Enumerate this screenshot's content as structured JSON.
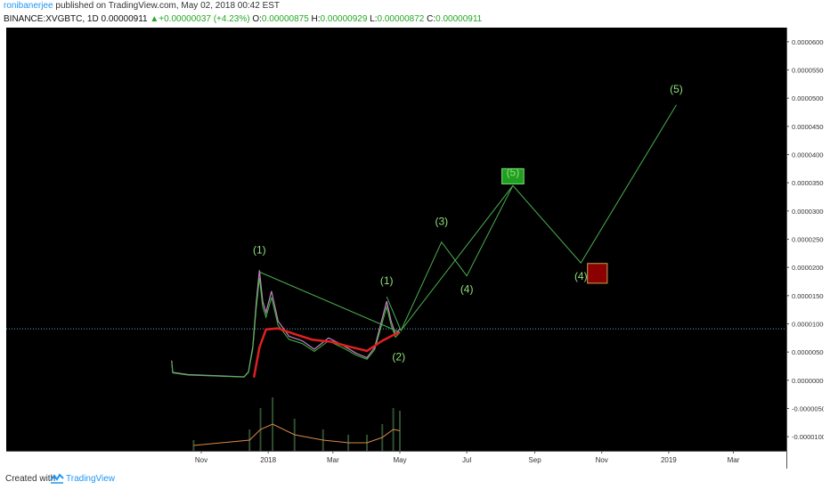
{
  "header": {
    "author": "ronibanerjee",
    "publish_text": "published on TradingView.com, May 02, 2018 00:42 EST",
    "symbol": "BINANCE:XVGBTC, 1D",
    "last_price": "0.00000911",
    "change_arrow": "▲",
    "change": "+0.00000037 (+4.23%)",
    "open_label": "O:",
    "open": "0.00000875",
    "high_label": "H:",
    "high": "0.00000929",
    "low_label": "L:",
    "low": "0.00000872",
    "close_label": "C:",
    "close": "0.00000911"
  },
  "footer": {
    "created_label": "Created with",
    "brand": "TradingView"
  },
  "colors": {
    "background": "#000000",
    "projection": "#4caf50",
    "label": "#8ee07a",
    "red_ma": "#e02020",
    "green_box": "#1f9e1f",
    "red_box": "#8b0000",
    "price_line": "#5fa8c8"
  },
  "chart_data": {
    "type": "line",
    "x_tick_labels": [
      "Nov",
      "2018",
      "Mar",
      "May",
      "Jul",
      "Sep",
      "Nov",
      "2019",
      "Mar"
    ],
    "y_tick_labels": [
      "0.00006000",
      "0.00005500",
      "0.00005000",
      "0.00004500",
      "0.00004000",
      "0.00003500",
      "0.00003000",
      "0.00002500",
      "0.00002000",
      "0.00001500",
      "0.00001000",
      "0.00000500",
      "0.00000000",
      "-0.00000500",
      "-0.00001000"
    ],
    "ylim": [
      -1.25e-05,
      6.25e-05
    ],
    "current_price": 9.11e-06,
    "price_series": [
      {
        "x": "2017-10-05",
        "y": 3.5e-06
      },
      {
        "x": "2017-10-06",
        "y": 1.4e-06
      },
      {
        "x": "2017-10-20",
        "y": 1e-06
      },
      {
        "x": "2017-11-15",
        "y": 8e-07
      },
      {
        "x": "2017-12-10",
        "y": 6e-07
      },
      {
        "x": "2017-12-14",
        "y": 1.5e-06
      },
      {
        "x": "2017-12-18",
        "y": 6e-06
      },
      {
        "x": "2017-12-21",
        "y": 1.35e-05
      },
      {
        "x": "2017-12-24",
        "y": 1.95e-05
      },
      {
        "x": "2017-12-27",
        "y": 1.4e-05
      },
      {
        "x": "2017-12-30",
        "y": 1.2e-05
      },
      {
        "x": "2018-01-04",
        "y": 1.58e-05
      },
      {
        "x": "2018-01-10",
        "y": 1.05e-05
      },
      {
        "x": "2018-01-20",
        "y": 7.8e-06
      },
      {
        "x": "2018-02-01",
        "y": 7e-06
      },
      {
        "x": "2018-02-12",
        "y": 5.5e-06
      },
      {
        "x": "2018-02-25",
        "y": 7.5e-06
      },
      {
        "x": "2018-03-10",
        "y": 6.2e-06
      },
      {
        "x": "2018-03-22",
        "y": 4.8e-06
      },
      {
        "x": "2018-04-01",
        "y": 4e-06
      },
      {
        "x": "2018-04-08",
        "y": 5.8e-06
      },
      {
        "x": "2018-04-15",
        "y": 1.1e-05
      },
      {
        "x": "2018-04-19",
        "y": 1.4e-05
      },
      {
        "x": "2018-04-23",
        "y": 1.05e-05
      },
      {
        "x": "2018-04-27",
        "y": 8.2e-06
      },
      {
        "x": "2018-05-01",
        "y": 9.11e-06
      }
    ],
    "ma_series": [
      {
        "x": "2017-12-19",
        "y": 5e-07
      },
      {
        "x": "2017-12-24",
        "y": 5.8e-06
      },
      {
        "x": "2017-12-30",
        "y": 9e-06
      },
      {
        "x": "2018-01-10",
        "y": 9.2e-06
      },
      {
        "x": "2018-01-25",
        "y": 8.2e-06
      },
      {
        "x": "2018-02-10",
        "y": 7.2e-06
      },
      {
        "x": "2018-02-28",
        "y": 6.8e-06
      },
      {
        "x": "2018-03-15",
        "y": 6e-06
      },
      {
        "x": "2018-04-01",
        "y": 5.2e-06
      },
      {
        "x": "2018-04-15",
        "y": 7e-06
      },
      {
        "x": "2018-04-25",
        "y": 8e-06
      },
      {
        "x": "2018-05-01",
        "y": 8.5e-06
      }
    ],
    "projection": [
      {
        "x": "2017-12-24",
        "y": 1.92e-05
      },
      {
        "x": "2018-05-01",
        "y": 8.5e-06
      },
      {
        "x": "2018-04-19",
        "y": 1.48e-05
      },
      {
        "x": "2018-05-02",
        "y": 8.8e-06
      },
      {
        "x": "2018-06-08",
        "y": 2.45e-05
      },
      {
        "x": "2018-07-01",
        "y": 1.85e-05
      },
      {
        "x": "2018-08-12",
        "y": 3.45e-05
      },
      {
        "x": "2018-05-02",
        "y": 8.8e-06
      },
      {
        "x": "2018-08-12",
        "y": 3.45e-05
      },
      {
        "x": "2018-10-13",
        "y": 2.08e-05
      },
      {
        "x": "2019-01-08",
        "y": 4.88e-05
      }
    ],
    "wave_labels": [
      {
        "text": "(1)",
        "x": "2017-12-24",
        "y": 2.25e-05
      },
      {
        "text": "(1)",
        "x": "2018-04-19",
        "y": 1.7e-05
      },
      {
        "text": "(2)",
        "x": "2018-04-30",
        "y": 3.5e-06
      },
      {
        "text": "(3)",
        "x": "2018-06-08",
        "y": 2.75e-05
      },
      {
        "text": "(4)",
        "x": "2018-07-01",
        "y": 1.55e-05
      },
      {
        "text": "(5)",
        "x": "2018-08-12",
        "y": 3.62e-05
      },
      {
        "text": "(4)",
        "x": "2018-10-13",
        "y": 1.78e-05
      },
      {
        "text": "(5)",
        "x": "2019-01-08",
        "y": 5.1e-05
      }
    ],
    "target_boxes": [
      {
        "x0": "2018-08-02",
        "x1": "2018-08-22",
        "y0": 3.48e-05,
        "y1": 3.75e-05
      },
      {
        "x0": "2018-10-19",
        "x1": "2018-11-06",
        "y0": 1.72e-05,
        "y1": 2.07e-05
      }
    ],
    "volume_series": [
      {
        "x": "2017-10-25",
        "y": 0.2
      },
      {
        "x": "2017-12-15",
        "y": 0.4
      },
      {
        "x": "2017-12-25",
        "y": 0.8
      },
      {
        "x": "2018-01-05",
        "y": 1.0
      },
      {
        "x": "2018-01-25",
        "y": 0.6
      },
      {
        "x": "2018-02-20",
        "y": 0.4
      },
      {
        "x": "2018-03-15",
        "y": 0.3
      },
      {
        "x": "2018-04-01",
        "y": 0.3
      },
      {
        "x": "2018-04-15",
        "y": 0.5
      },
      {
        "x": "2018-04-25",
        "y": 0.8
      },
      {
        "x": "2018-05-01",
        "y": 0.75
      }
    ],
    "grid": false
  }
}
